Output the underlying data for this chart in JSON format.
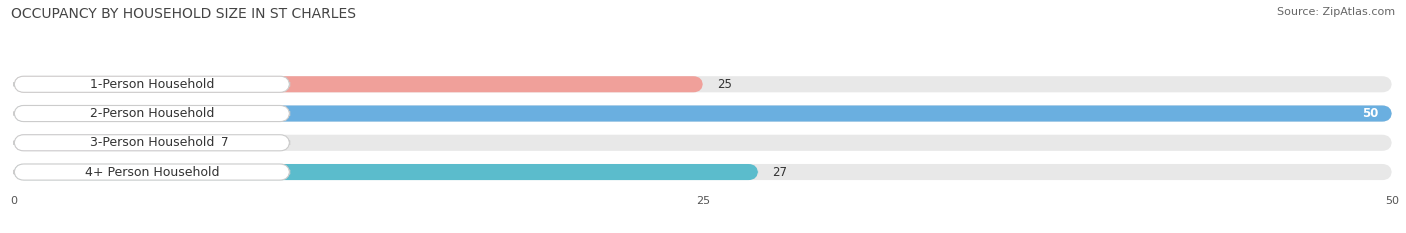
{
  "title": "OCCUPANCY BY HOUSEHOLD SIZE IN ST CHARLES",
  "source": "Source: ZipAtlas.com",
  "categories": [
    "1-Person Household",
    "2-Person Household",
    "3-Person Household",
    "4+ Person Household"
  ],
  "values": [
    25,
    50,
    7,
    27
  ],
  "bar_colors": [
    "#f0a09a",
    "#6aafe0",
    "#c4a8d4",
    "#5bbccc"
  ],
  "xlim": [
    0,
    50
  ],
  "xticks": [
    0,
    25,
    50
  ],
  "background_color": "#ffffff",
  "bar_bg_color": "#e8e8e8",
  "label_bg_color": "#ffffff",
  "title_fontsize": 10,
  "source_fontsize": 8,
  "label_fontsize": 9,
  "value_fontsize": 8.5,
  "bar_height": 0.55,
  "figsize": [
    14.06,
    2.33
  ],
  "dpi": 100
}
